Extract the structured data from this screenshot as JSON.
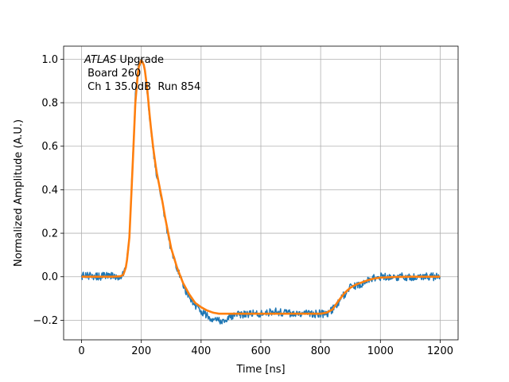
{
  "chart_data": {
    "type": "line",
    "title": "",
    "xlabel": "Time [ns]",
    "ylabel": "Normalized Amplitude (A.U.)",
    "xlim": [
      -60,
      1260
    ],
    "ylim": [
      -0.29,
      1.06
    ],
    "xticks": [
      0,
      200,
      400,
      600,
      800,
      1000,
      1200
    ],
    "yticks": [
      -0.2,
      0.0,
      0.2,
      0.4,
      0.6,
      0.8,
      1.0
    ],
    "xtick_labels": [
      "0",
      "200",
      "400",
      "600",
      "800",
      "1000",
      "1200"
    ],
    "ytick_labels": [
      "−0.2",
      "0.0",
      "0.2",
      "0.4",
      "0.6",
      "0.8",
      "1.0"
    ],
    "grid": true,
    "annotation": {
      "line1_italic": "ATLAS",
      "line1_rest": " Upgrade",
      "line2": " Board 260",
      "line3": " Ch 1 35.0dB  Run 854"
    },
    "series": [
      {
        "color": "#1f77b4",
        "noise_amplitude": 0.018,
        "x": [
          0,
          50,
          100,
          130,
          140,
          150,
          160,
          170,
          180,
          190,
          200,
          210,
          220,
          230,
          240,
          250,
          260,
          270,
          280,
          290,
          300,
          320,
          340,
          360,
          380,
          400,
          420,
          440,
          460,
          480,
          500,
          550,
          600,
          650,
          700,
          750,
          800,
          820,
          840,
          860,
          880,
          900,
          920,
          940,
          960,
          980,
          1000,
          1050,
          1100,
          1150,
          1200
        ],
        "y": [
          0.005,
          0.0,
          0.005,
          0.0,
          0.01,
          0.05,
          0.18,
          0.5,
          0.83,
          0.97,
          0.99,
          0.96,
          0.85,
          0.7,
          0.58,
          0.48,
          0.42,
          0.35,
          0.26,
          0.19,
          0.12,
          0.04,
          -0.04,
          -0.09,
          -0.13,
          -0.16,
          -0.18,
          -0.19,
          -0.2,
          -0.2,
          -0.18,
          -0.17,
          -0.17,
          -0.16,
          -0.17,
          -0.17,
          -0.17,
          -0.17,
          -0.15,
          -0.12,
          -0.08,
          -0.05,
          -0.04,
          -0.03,
          -0.01,
          -0.005,
          0.0,
          0.0,
          0.0,
          0.0,
          0.0
        ]
      },
      {
        "color": "#ff7f0e",
        "x": [
          0,
          50,
          100,
          130,
          140,
          150,
          160,
          170,
          180,
          190,
          200,
          210,
          220,
          230,
          240,
          250,
          260,
          270,
          280,
          290,
          300,
          320,
          340,
          360,
          380,
          400,
          420,
          440,
          460,
          480,
          500,
          550,
          600,
          650,
          700,
          750,
          800,
          820,
          840,
          860,
          880,
          900,
          920,
          940,
          960,
          980,
          1000,
          1050,
          1100,
          1150,
          1200
        ],
        "y": [
          0.0,
          0.0,
          0.0,
          0.002,
          0.01,
          0.05,
          0.18,
          0.48,
          0.8,
          0.96,
          0.995,
          0.97,
          0.86,
          0.71,
          0.59,
          0.49,
          0.42,
          0.35,
          0.27,
          0.2,
          0.13,
          0.04,
          -0.03,
          -0.08,
          -0.12,
          -0.14,
          -0.155,
          -0.165,
          -0.17,
          -0.17,
          -0.17,
          -0.17,
          -0.17,
          -0.17,
          -0.17,
          -0.17,
          -0.17,
          -0.165,
          -0.15,
          -0.11,
          -0.075,
          -0.05,
          -0.035,
          -0.025,
          -0.015,
          -0.008,
          -0.004,
          -0.001,
          0.0,
          0.0,
          0.0
        ]
      }
    ]
  }
}
